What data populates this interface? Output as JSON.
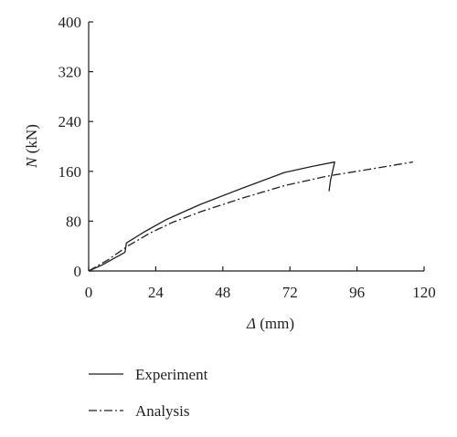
{
  "chart_data": {
    "type": "line",
    "xlabel_var": "Δ",
    "xlabel_unit": " (mm)",
    "ylabel_var": "N",
    "ylabel_unit": " (kN)",
    "xlim": [
      0,
      120
    ],
    "ylim": [
      0,
      400
    ],
    "xticks": [
      0,
      24,
      48,
      72,
      96,
      120
    ],
    "yticks": [
      0,
      80,
      160,
      240,
      320,
      400
    ],
    "grid": false,
    "legend_position": "bottom-left",
    "series": [
      {
        "name": "Experiment",
        "style": "solid",
        "color": "#231f20",
        "x": [
          0,
          5,
          13,
          13.5,
          20,
          28,
          40,
          55,
          70,
          80,
          88,
          86.5,
          86
        ],
        "y": [
          0,
          10,
          30,
          45,
          63,
          83,
          107,
          133,
          158,
          168,
          175,
          145,
          128
        ]
      },
      {
        "name": "Analysis",
        "style": "dashdot",
        "color": "#231f20",
        "x": [
          0,
          7,
          14,
          22,
          30,
          40,
          55,
          70,
          85,
          100,
          116
        ],
        "y": [
          0,
          18,
          40,
          61,
          78,
          95,
          117,
          137,
          152,
          163,
          175
        ]
      }
    ]
  }
}
